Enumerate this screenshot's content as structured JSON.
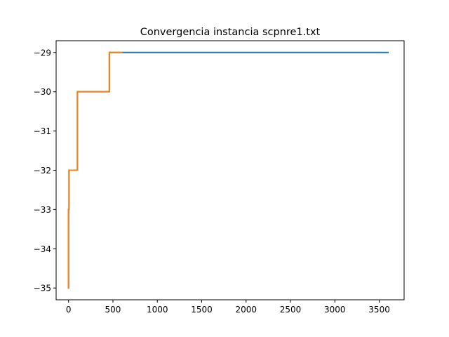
{
  "chart_data": {
    "type": "line",
    "title": "Convergencia instancia scpnre1.txt",
    "xlabel": "",
    "ylabel": "",
    "xlim": [
      -140,
      3780
    ],
    "ylim": [
      -35.3,
      -28.7
    ],
    "x_ticks": [
      0,
      500,
      1000,
      1500,
      2000,
      2500,
      3000,
      3500
    ],
    "x_tick_labels": [
      "0",
      "500",
      "1000",
      "1500",
      "2000",
      "2500",
      "3000",
      "3500"
    ],
    "y_ticks": [
      -35,
      -34,
      -33,
      -32,
      -31,
      -30,
      -29
    ],
    "y_tick_labels": [
      "−35",
      "−34",
      "−33",
      "−32",
      "−31",
      "−30",
      "−29"
    ],
    "grid": false,
    "series": [
      {
        "color": "#1f77b4",
        "x": [
          0,
          0,
          5,
          5,
          8,
          8,
          100,
          100,
          460,
          460,
          3600
        ],
        "y": [
          -35,
          -33,
          -33,
          -32,
          -32,
          -32,
          -32,
          -30,
          -30,
          -29,
          -29
        ]
      },
      {
        "color": "#ff7f0e",
        "x": [
          0,
          0,
          5,
          5,
          8,
          8,
          100,
          100,
          460,
          460,
          600
        ],
        "y": [
          -35,
          -33,
          -33,
          -32,
          -32,
          -32,
          -32,
          -30,
          -30,
          -29,
          -29
        ]
      }
    ]
  }
}
